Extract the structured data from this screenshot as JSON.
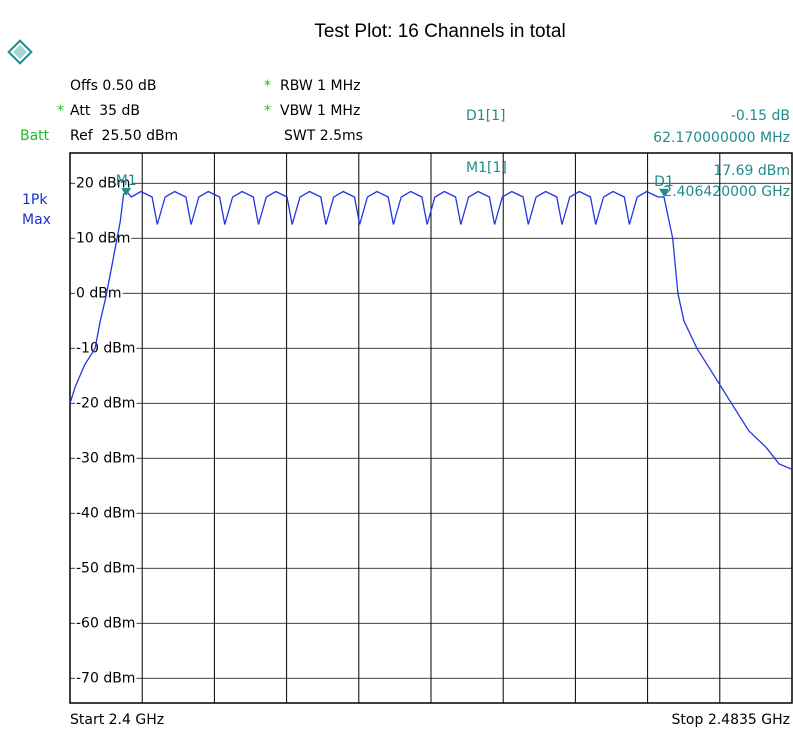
{
  "chart_data": {
    "type": "line",
    "title": "Test Plot: 16 Channels in total",
    "header": {
      "offs": "Offs 0.50 dB",
      "att_star": "*",
      "att": "Att  35 dB",
      "batt": "Batt",
      "ref": "Ref  25.50 dBm",
      "rbw_star": "*",
      "rbw": "RBW 1 MHz",
      "vbw_star": "*",
      "vbw": "VBW 1 MHz",
      "swt": "SWT 2.5ms",
      "d1_name": "D1[1]",
      "d1_level": "-0.15 dB",
      "d1_freq": "62.170000000 MHz",
      "m1_name": "M1[1]",
      "m1_level": "17.69 dBm",
      "m1_freq": "2.406420000 GHz",
      "trace_mode": "1Pk",
      "trace_det": "Max"
    },
    "x_start_label": "Start 2.4 GHz",
    "x_stop_label": "Stop 2.4835 GHz",
    "color": "#2236e0",
    "x": [
      2.4,
      2.4006,
      2.4017,
      2.4029,
      2.4035,
      2.4041,
      2.4046,
      2.4052,
      2.4058,
      2.4062,
      2.4065,
      2.4071,
      2.4082,
      2.4095,
      2.4101,
      2.411,
      2.4121,
      2.4134,
      2.414,
      2.4149,
      2.416,
      2.4173,
      2.4179,
      2.4188,
      2.4199,
      2.4212,
      2.4218,
      2.4227,
      2.4238,
      2.4251,
      2.4257,
      2.4266,
      2.4277,
      2.429,
      2.4296,
      2.4305,
      2.4316,
      2.4329,
      2.4335,
      2.4344,
      2.4355,
      2.4368,
      2.4374,
      2.4383,
      2.4394,
      2.4407,
      2.4413,
      2.4422,
      2.4433,
      2.4446,
      2.4452,
      2.4461,
      2.4472,
      2.4485,
      2.4491,
      2.45,
      2.4511,
      2.4524,
      2.453,
      2.4539,
      2.455,
      2.4563,
      2.4569,
      2.4578,
      2.4589,
      2.4602,
      2.4608,
      2.4617,
      2.4628,
      2.4641,
      2.4647,
      2.4656,
      2.4667,
      2.468,
      2.4687,
      2.4697,
      2.4703,
      2.471,
      2.4725,
      2.4745,
      2.4765,
      2.4785,
      2.4805,
      2.482,
      2.4835
    ],
    "values": [
      -20,
      -17,
      -13,
      -10,
      -5,
      -1,
      3,
      8,
      13,
      18,
      18.6,
      17.5,
      18.5,
      17.5,
      12.5,
      17.5,
      18.5,
      17.5,
      12.5,
      17.5,
      18.5,
      17.5,
      12.5,
      17.5,
      18.5,
      17.5,
      12.5,
      17.5,
      18.5,
      17.5,
      12.5,
      17.5,
      18.5,
      17.5,
      12.5,
      17.5,
      18.5,
      17.5,
      12.5,
      17.5,
      18.5,
      17.5,
      12.5,
      17.5,
      18.5,
      17.5,
      12.5,
      17.5,
      18.5,
      17.5,
      12.5,
      17.5,
      18.5,
      17.5,
      12.5,
      17.5,
      18.5,
      17.5,
      12.5,
      17.5,
      18.5,
      17.5,
      12.5,
      17.5,
      18.5,
      17.5,
      12.5,
      17.5,
      18.5,
      17.5,
      12.5,
      17.5,
      18.5,
      17.5,
      17.5,
      10,
      0,
      -5,
      -10,
      -15,
      -20,
      -25,
      -28,
      -31,
      -32
    ],
    "markers": [
      {
        "label": "M1",
        "x": 2.4065,
        "y": 17.69
      },
      {
        "label": "D1",
        "x": 2.4687,
        "y": 17.54
      }
    ],
    "xlim": [
      2.4,
      2.4835
    ],
    "xticks": [
      2.4,
      2.40835,
      2.4167,
      2.42505,
      2.4334,
      2.44175,
      2.4501,
      2.45845,
      2.4668,
      2.47515,
      2.4835
    ],
    "ylim": [
      -74.5,
      25.5
    ],
    "yticks": [
      {
        "value": 20,
        "label": "20 dBm"
      },
      {
        "value": 10,
        "label": "10 dBm"
      },
      {
        "value": 0,
        "label": "0 dBm"
      },
      {
        "value": -10,
        "label": "-10 dBm"
      },
      {
        "value": -20,
        "label": "-20 dBm"
      },
      {
        "value": -30,
        "label": "-30 dBm"
      },
      {
        "value": -40,
        "label": "-40 dBm"
      },
      {
        "value": -50,
        "label": "-50 dBm"
      },
      {
        "value": -60,
        "label": "-60 dBm"
      },
      {
        "value": -70,
        "label": "-70 dBm"
      }
    ],
    "grid": true
  }
}
